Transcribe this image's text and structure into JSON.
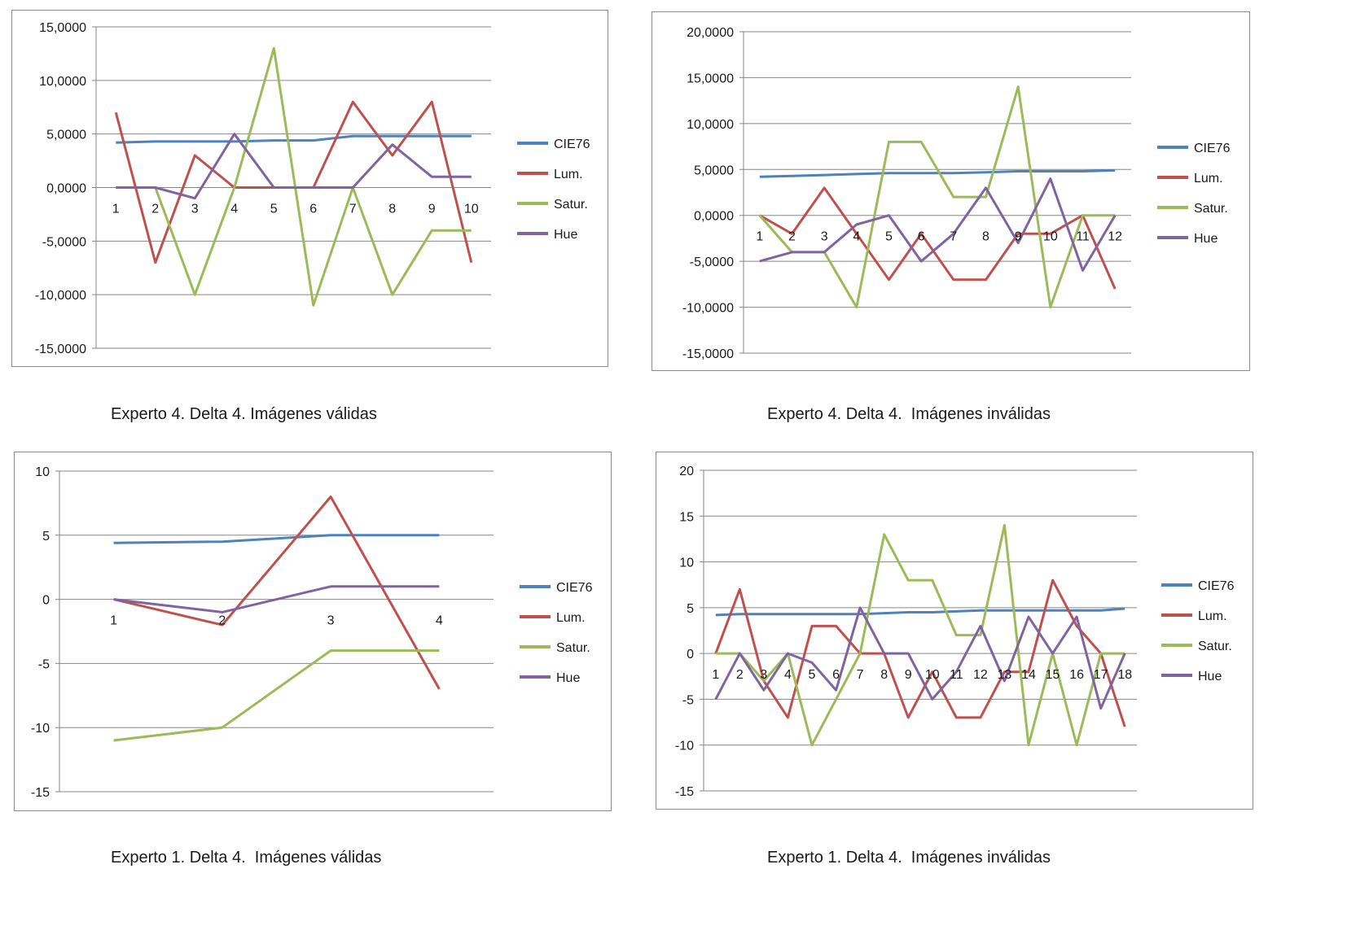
{
  "colors": {
    "CIE76": "#4f81bd",
    "Lum.": "#c0504d",
    "Satur.": "#9bbb59",
    "Hue": "#8064a2",
    "grid": "#868686"
  },
  "chart_data": [
    {
      "type": "line",
      "caption": "Experto 4. Delta 4. Imágenes válidas",
      "x": [
        "1",
        "2",
        "3",
        "4",
        "5",
        "6",
        "7",
        "8",
        "9",
        "10"
      ],
      "ylim": [
        -15,
        15
      ],
      "ystep": 5,
      "decimals": 4,
      "yticks": [
        "15,0000",
        "10,0000",
        "5,0000",
        "0,0000",
        "-5,0000",
        "-10,0000",
        "-15,0000"
      ],
      "legend_position": "right",
      "series": [
        {
          "name": "CIE76",
          "values": [
            4.2,
            4.3,
            4.3,
            4.3,
            4.4,
            4.4,
            4.8,
            4.8,
            4.8,
            4.8
          ]
        },
        {
          "name": "Lum.",
          "values": [
            7,
            -7,
            3,
            0,
            0,
            0,
            8,
            3,
            8,
            -7
          ]
        },
        {
          "name": "Satur.",
          "values": [
            0,
            0,
            -10,
            0,
            13,
            -11,
            0,
            -10,
            -4,
            -4
          ]
        },
        {
          "name": "Hue",
          "values": [
            0,
            0,
            -1,
            5,
            0,
            0,
            0,
            4,
            1,
            1
          ]
        }
      ]
    },
    {
      "type": "line",
      "caption": "Experto 4. Delta 4.  Imágenes inválidas",
      "x": [
        "1",
        "2",
        "3",
        "4",
        "5",
        "6",
        "7",
        "8",
        "9",
        "10",
        "11",
        "12"
      ],
      "ylim": [
        -15,
        20
      ],
      "ystep": 5,
      "decimals": 4,
      "yticks": [
        "20,0000",
        "15,0000",
        "10,0000",
        "5,0000",
        "0,0000",
        "-5,0000",
        "-10,0000",
        "-15,0000"
      ],
      "legend_position": "right",
      "series": [
        {
          "name": "CIE76",
          "values": [
            4.2,
            4.3,
            4.4,
            4.5,
            4.6,
            4.6,
            4.6,
            4.7,
            4.8,
            4.8,
            4.8,
            4.9
          ]
        },
        {
          "name": "Lum.",
          "values": [
            0,
            -2,
            3,
            -2,
            -7,
            -2,
            -7,
            -7,
            -2,
            -2,
            0,
            -8
          ]
        },
        {
          "name": "Satur.",
          "values": [
            0,
            -4,
            -4,
            -10,
            8,
            8,
            2,
            2,
            14,
            -10,
            0,
            0
          ]
        },
        {
          "name": "Hue",
          "values": [
            -5,
            -4,
            -4,
            -1,
            0,
            -5,
            -2,
            3,
            -3,
            4,
            -6,
            0
          ]
        }
      ]
    },
    {
      "type": "line",
      "caption": "Experto 1. Delta 4.  Imágenes válidas",
      "x": [
        "1",
        "2",
        "3",
        "4"
      ],
      "ylim": [
        -15,
        10
      ],
      "ystep": 5,
      "decimals": 0,
      "yticks": [
        "10",
        "5",
        "0",
        "-5",
        "-10",
        "-15"
      ],
      "legend_position": "right",
      "series": [
        {
          "name": "CIE76",
          "values": [
            4.4,
            4.5,
            5,
            5
          ]
        },
        {
          "name": "Lum.",
          "values": [
            0,
            -2,
            8,
            -7
          ]
        },
        {
          "name": "Satur.",
          "values": [
            -11,
            -10,
            -4,
            -4
          ]
        },
        {
          "name": "Hue",
          "values": [
            0,
            -1,
            1,
            1
          ]
        }
      ]
    },
    {
      "type": "line",
      "caption": "Experto 1. Delta 4.  Imágenes inválidas",
      "x": [
        "1",
        "2",
        "3",
        "4",
        "5",
        "6",
        "7",
        "8",
        "9",
        "10",
        "11",
        "12",
        "13",
        "14",
        "15",
        "16",
        "17",
        "18"
      ],
      "ylim": [
        -15,
        20
      ],
      "ystep": 5,
      "decimals": 0,
      "yticks": [
        "20",
        "15",
        "10",
        "5",
        "0",
        "-5",
        "-10",
        "-15"
      ],
      "legend_position": "right",
      "series": [
        {
          "name": "CIE76",
          "values": [
            4.2,
            4.3,
            4.3,
            4.3,
            4.3,
            4.3,
            4.3,
            4.4,
            4.5,
            4.5,
            4.6,
            4.7,
            4.7,
            4.7,
            4.7,
            4.7,
            4.7,
            4.9
          ]
        },
        {
          "name": "Lum.",
          "values": [
            0,
            7,
            -3,
            -7,
            3,
            3,
            0,
            0,
            -7,
            -2,
            -7,
            -7,
            -2,
            -2,
            8,
            3,
            0,
            -8
          ]
        },
        {
          "name": "Satur.",
          "values": [
            0,
            0,
            -3,
            0,
            -10,
            -5,
            0,
            13,
            8,
            8,
            2,
            2,
            14,
            -10,
            0,
            -10,
            0,
            0
          ]
        },
        {
          "name": "Hue",
          "values": [
            -5,
            0,
            -4,
            0,
            -1,
            -4,
            5,
            0,
            0,
            -5,
            -2,
            3,
            -3,
            4,
            0,
            4,
            -6,
            0
          ]
        }
      ]
    }
  ]
}
